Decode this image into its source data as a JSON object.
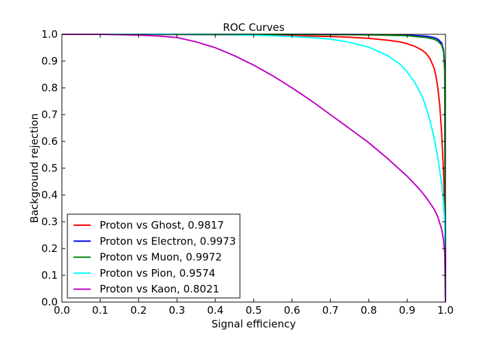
{
  "chart_data": {
    "type": "line",
    "title": "ROC Curves",
    "xlabel": "Signal efficiency",
    "ylabel": "Background rejection",
    "xlim": [
      0.0,
      1.0
    ],
    "ylim": [
      0.0,
      1.0
    ],
    "xticks": [
      0.0,
      0.1,
      0.2,
      0.3,
      0.4,
      0.5,
      0.6,
      0.7,
      0.8,
      0.9,
      1.0
    ],
    "yticks": [
      0.0,
      0.1,
      0.2,
      0.3,
      0.4,
      0.5,
      0.6,
      0.7,
      0.8,
      0.9,
      1.0
    ],
    "xtick_labels": [
      "0.0",
      "0.1",
      "0.2",
      "0.3",
      "0.4",
      "0.5",
      "0.6",
      "0.7",
      "0.8",
      "0.9",
      "1.0"
    ],
    "ytick_labels": [
      "0.0",
      "0.1",
      "0.2",
      "0.3",
      "0.4",
      "0.5",
      "0.6",
      "0.7",
      "0.8",
      "0.9",
      "1.0"
    ],
    "grid": false,
    "legend_position": "lower-left",
    "series": [
      {
        "name": "Proton vs Ghost, 0.9817",
        "color": "#ff0000",
        "x": [
          0.0,
          0.1,
          0.2,
          0.3,
          0.4,
          0.5,
          0.6,
          0.7,
          0.75,
          0.8,
          0.85,
          0.88,
          0.9,
          0.92,
          0.94,
          0.95,
          0.96,
          0.97,
          0.975,
          0.98,
          0.985,
          0.99,
          0.995,
          0.998,
          1.0
        ],
        "y": [
          1.0,
          1.0,
          1.0,
          0.999,
          0.998,
          0.997,
          0.995,
          0.992,
          0.989,
          0.985,
          0.978,
          0.972,
          0.965,
          0.955,
          0.94,
          0.928,
          0.908,
          0.875,
          0.845,
          0.8,
          0.735,
          0.63,
          0.48,
          0.34,
          0.0
        ]
      },
      {
        "name": "Proton vs Electron, 0.9973",
        "color": "#0000ff",
        "x": [
          0.0,
          0.2,
          0.4,
          0.6,
          0.8,
          0.9,
          0.95,
          0.97,
          0.98,
          0.99,
          0.995,
          0.998,
          1.0
        ],
        "y": [
          1.0,
          1.0,
          1.0,
          1.0,
          0.999,
          0.997,
          0.993,
          0.988,
          0.982,
          0.968,
          0.94,
          0.88,
          0.0
        ]
      },
      {
        "name": "Proton vs Muon, 0.9972",
        "color": "#008000",
        "x": [
          0.0,
          0.2,
          0.4,
          0.6,
          0.8,
          0.9,
          0.95,
          0.97,
          0.98,
          0.99,
          0.995,
          0.998,
          1.0
        ],
        "y": [
          1.0,
          1.0,
          1.0,
          1.0,
          0.998,
          0.995,
          0.988,
          0.982,
          0.975,
          0.96,
          0.935,
          0.86,
          0.0
        ]
      },
      {
        "name": "Proton vs Pion, 0.9574",
        "color": "#00ffff",
        "x": [
          0.0,
          0.2,
          0.4,
          0.5,
          0.6,
          0.65,
          0.7,
          0.75,
          0.8,
          0.85,
          0.88,
          0.9,
          0.92,
          0.94,
          0.95,
          0.96,
          0.97,
          0.98,
          0.99,
          0.995,
          0.998,
          1.0
        ],
        "y": [
          1.0,
          1.0,
          0.999,
          0.997,
          0.992,
          0.988,
          0.982,
          0.97,
          0.952,
          0.92,
          0.89,
          0.86,
          0.82,
          0.765,
          0.725,
          0.675,
          0.615,
          0.54,
          0.44,
          0.37,
          0.3,
          0.0
        ]
      },
      {
        "name": "Proton vs Kaon, 0.8021",
        "color": "#bf00bf",
        "x": [
          0.0,
          0.1,
          0.2,
          0.25,
          0.3,
          0.35,
          0.4,
          0.45,
          0.5,
          0.55,
          0.6,
          0.65,
          0.7,
          0.75,
          0.8,
          0.85,
          0.9,
          0.93,
          0.95,
          0.97,
          0.98,
          0.99,
          0.995,
          0.998,
          1.0
        ],
        "y": [
          1.0,
          1.0,
          0.997,
          0.994,
          0.988,
          0.972,
          0.95,
          0.92,
          0.885,
          0.845,
          0.8,
          0.752,
          0.7,
          0.648,
          0.595,
          0.535,
          0.47,
          0.425,
          0.39,
          0.348,
          0.318,
          0.272,
          0.23,
          0.18,
          0.0
        ]
      }
    ]
  }
}
